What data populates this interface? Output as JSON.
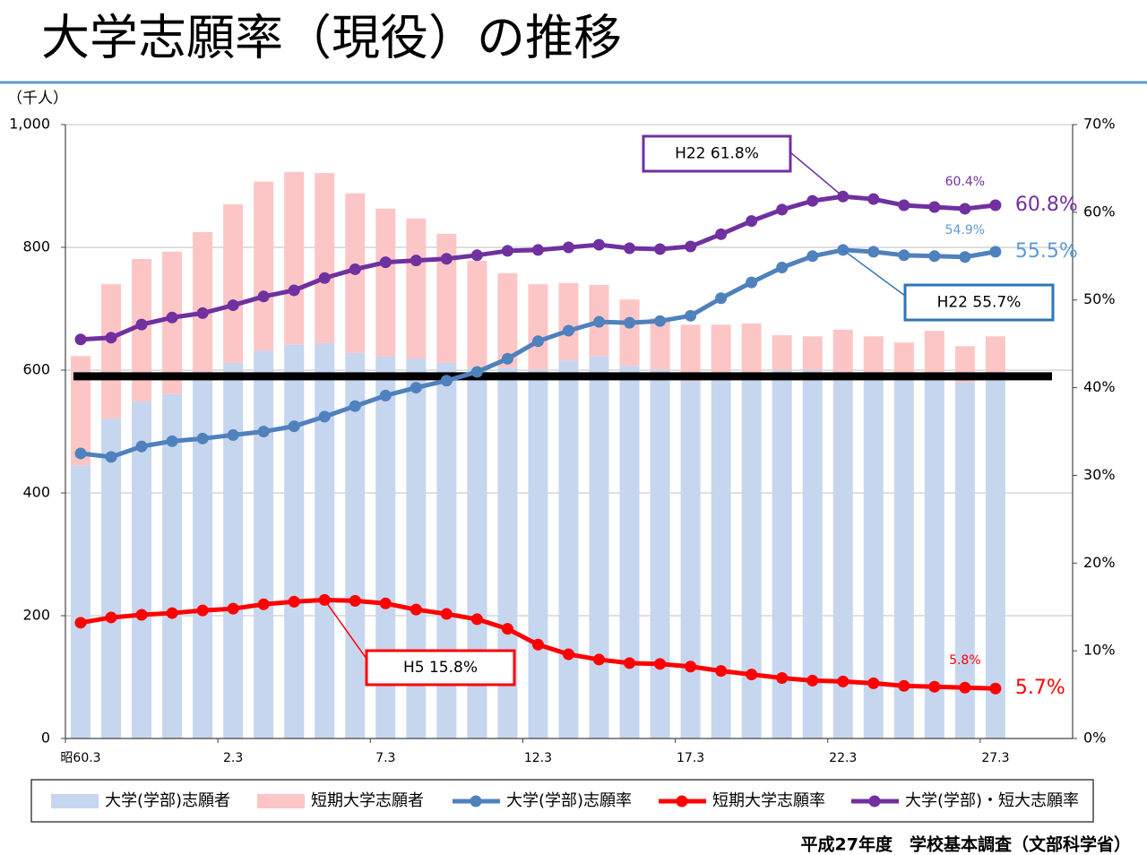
{
  "chart_data": {
    "type": "bar",
    "stacked": true,
    "title": "大学志願率（現役）の推移",
    "y_unit": "（千人）",
    "source": "平成27年度　学校基本調査（文部科学省）",
    "categories": [
      "昭60.3",
      null,
      null,
      null,
      null,
      "2.3",
      null,
      null,
      null,
      null,
      "7.3",
      null,
      null,
      null,
      null,
      "12.3",
      null,
      null,
      null,
      null,
      "17.3",
      null,
      null,
      null,
      null,
      "22.3",
      null,
      null,
      null,
      null,
      "27.3"
    ],
    "ylim": [
      0,
      1000
    ],
    "yticks": [
      0,
      200,
      400,
      600,
      800,
      {
        "value": 1000,
        "label": "1,000"
      }
    ],
    "y2lim": [
      0,
      70
    ],
    "y2ticks": [
      {
        "value": 0,
        "label": "0%"
      },
      {
        "value": 10,
        "label": "10%"
      },
      {
        "value": 20,
        "label": "20%"
      },
      {
        "value": 30,
        "label": "30%"
      },
      {
        "value": 40,
        "label": "40%"
      },
      {
        "value": 50,
        "label": "50%"
      },
      {
        "value": 60,
        "label": "60%"
      },
      {
        "value": 70,
        "label": "70%"
      }
    ],
    "grid": true,
    "reference_line": {
      "value": 590,
      "color": "#000000"
    },
    "series": [
      {
        "name": "大学(学部)志願者",
        "type": "bar",
        "color": "#c6d6ef",
        "values": [
          445,
          521,
          549,
          561,
          597,
          612,
          632,
          642,
          644,
          628,
          622,
          619,
          612,
          604,
          604,
          601,
          616,
          623,
          607,
          601,
          582,
          590,
          595,
          600,
          600,
          597,
          590,
          585,
          590,
          580,
          595
        ]
      },
      {
        "name": "短期大学志願者",
        "type": "bar",
        "color": "#fcc6c6",
        "values": [
          178,
          219,
          232,
          232,
          228,
          258,
          275,
          281,
          277,
          260,
          241,
          228,
          210,
          174,
          154,
          139,
          126,
          116,
          108,
          84,
          92,
          84,
          81,
          57,
          55,
          69,
          65,
          60,
          74,
          59,
          60
        ]
      },
      {
        "name": "大学(学部)志願率",
        "type": "line",
        "axis": "y2",
        "color": "#4f81bd",
        "label_color": "#5b9bd5",
        "values": [
          32.5,
          32.1,
          33.3,
          33.9,
          34.2,
          34.6,
          35.0,
          35.6,
          36.7,
          37.9,
          39.1,
          40.0,
          40.8,
          41.8,
          43.3,
          45.3,
          46.5,
          47.5,
          47.4,
          47.6,
          48.2,
          50.2,
          52.0,
          53.7,
          55.0,
          55.7,
          55.5,
          55.1,
          55.0,
          54.9,
          55.5
        ],
        "value_labels": [
          null,
          null,
          null,
          null,
          null,
          null,
          null,
          null,
          null,
          null,
          null,
          null,
          null,
          null,
          null,
          null,
          null,
          null,
          null,
          null,
          null,
          null,
          null,
          null,
          null,
          null,
          null,
          null,
          null,
          "54.9%",
          "55.5%"
        ]
      },
      {
        "name": "短期大学志願率",
        "type": "line",
        "axis": "y2",
        "color": "#ff0000",
        "label_color": "#ff0000",
        "values": [
          13.2,
          13.8,
          14.1,
          14.3,
          14.6,
          14.8,
          15.3,
          15.6,
          15.8,
          15.7,
          15.4,
          14.7,
          14.2,
          13.6,
          12.5,
          10.7,
          9.6,
          9.0,
          8.6,
          8.5,
          8.2,
          7.7,
          7.3,
          6.9,
          6.6,
          6.5,
          6.3,
          6.0,
          5.9,
          5.8,
          5.7
        ],
        "value_labels": [
          null,
          null,
          null,
          null,
          null,
          null,
          null,
          null,
          null,
          null,
          null,
          null,
          null,
          null,
          null,
          null,
          null,
          null,
          null,
          null,
          null,
          null,
          null,
          null,
          null,
          null,
          null,
          null,
          null,
          "5.8%",
          "5.7%"
        ]
      },
      {
        "name": "大学(学部)・短大志願率",
        "type": "line",
        "axis": "y2",
        "color": "#7030a0",
        "label_color": "#7030a0",
        "values": [
          45.5,
          45.7,
          47.2,
          48.0,
          48.5,
          49.4,
          50.4,
          51.1,
          52.5,
          53.5,
          54.3,
          54.5,
          54.7,
          55.1,
          55.6,
          55.7,
          56.0,
          56.3,
          55.9,
          55.8,
          56.1,
          57.5,
          59.0,
          60.3,
          61.3,
          61.8,
          61.5,
          60.8,
          60.6,
          60.4,
          60.8
        ],
        "value_labels": [
          null,
          null,
          null,
          null,
          null,
          null,
          null,
          null,
          null,
          null,
          null,
          null,
          null,
          null,
          null,
          null,
          null,
          null,
          null,
          null,
          null,
          null,
          null,
          null,
          null,
          null,
          null,
          null,
          null,
          "60.4%",
          "60.8%"
        ]
      }
    ],
    "annotations": [
      {
        "text": "H22 61.8%",
        "color": "#7030a0"
      },
      {
        "text": "H22 55.7%",
        "color": "#2e75b6"
      },
      {
        "text": "H5 15.8%",
        "color": "#ff0000"
      }
    ]
  }
}
